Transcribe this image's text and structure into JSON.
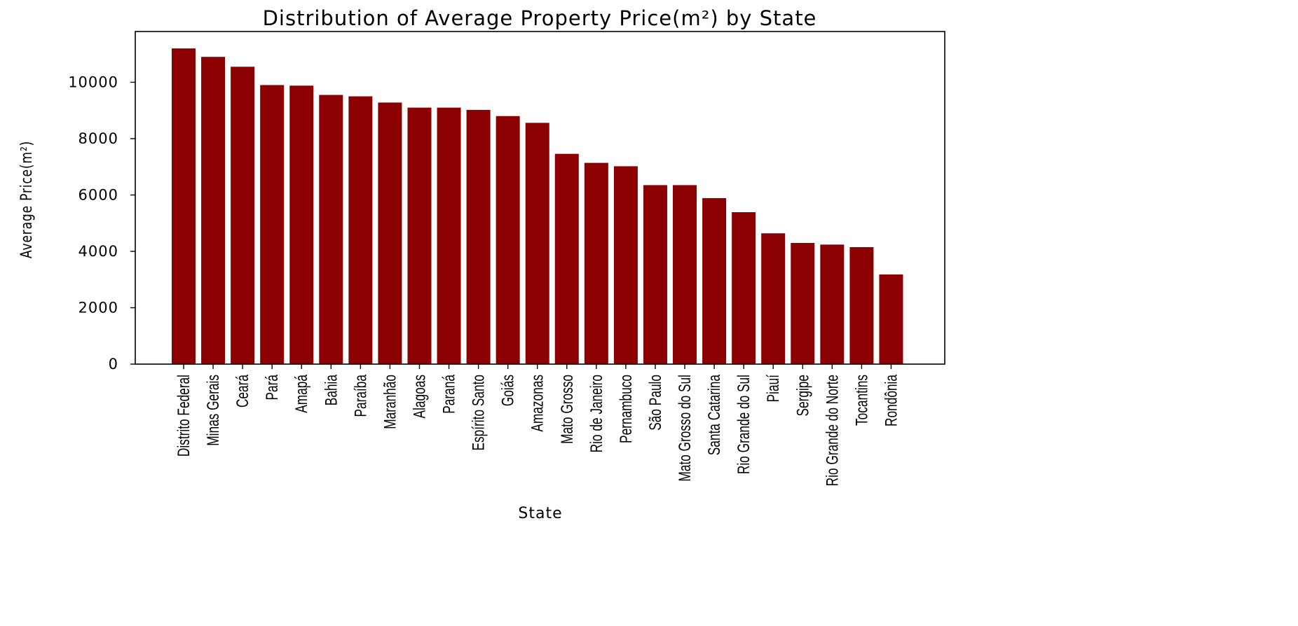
{
  "chart_data": {
    "type": "bar",
    "title": "Distribution of Average Property Price(m²) by State",
    "xlabel": "State",
    "ylabel": "Average Price(m²)",
    "categories": [
      "Distrito Federal",
      "Minas Gerais",
      "Ceará",
      "Pará",
      "Amapá",
      "Bahia",
      "Paraíba",
      "Maranhão",
      "Alagoas",
      "Paraná",
      "Espírito Santo",
      "Goiás",
      "Amazonas",
      "Mato Grosso",
      "Rio de Janeiro",
      "Pernambuco",
      "São Paulo",
      "Mato Grosso do Sul",
      "Santa Catarina",
      "Rio Grande do Sul",
      "Piauí",
      "Sergipe",
      "Rio Grande do Norte",
      "Tocantins",
      "Rondônia"
    ],
    "values": [
      11200,
      10900,
      10550,
      9900,
      9880,
      9550,
      9500,
      9280,
      9100,
      9100,
      9020,
      8800,
      8560,
      7460,
      7140,
      7020,
      6350,
      6350,
      5890,
      5390,
      4640,
      4300,
      4240,
      4150,
      3180
    ],
    "ylim": [
      0,
      11800
    ],
    "yticks": [
      0,
      2000,
      4000,
      6000,
      8000,
      10000
    ],
    "bar_color": "#8b0000",
    "grid": false,
    "legend": "none"
  }
}
